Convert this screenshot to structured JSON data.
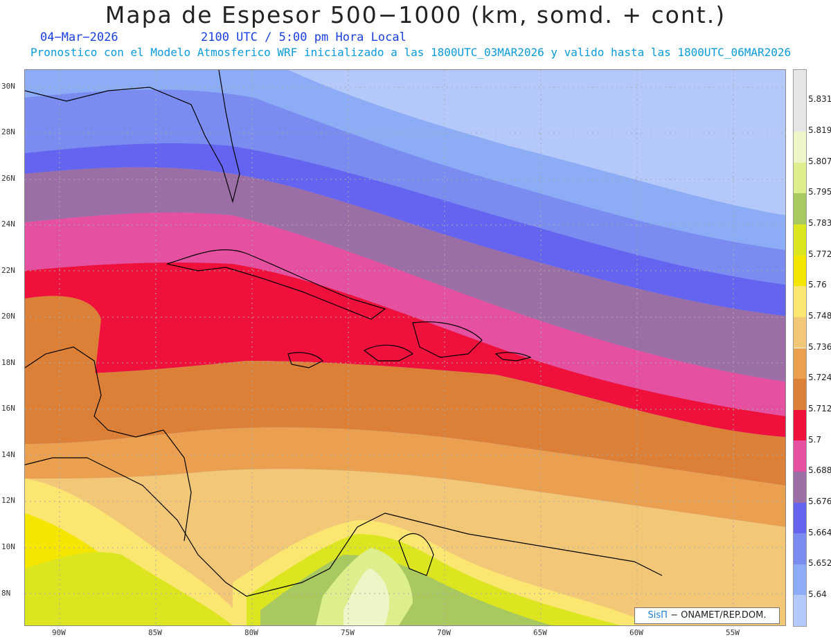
{
  "header": {
    "title": "Mapa de Espesor 500−1000 (km, somd. + cont.)",
    "date": "04−Mar−2026",
    "time": "2100 UTC / 5:00 pm Hora Local",
    "subtitle": "Pronostico con el Modelo Atmosferico WRF inicializado a las 1800UTC_03MAR2026 y valido hasta las  1800UTC_06MAR2026"
  },
  "map": {
    "lat_labels": [
      "30N",
      "28N",
      "26N",
      "24N",
      "22N",
      "20N",
      "18N",
      "16N",
      "14N",
      "12N",
      "10N",
      "8N"
    ],
    "lon_labels": [
      "90W",
      "85W",
      "80W",
      "75W",
      "70W",
      "65W",
      "60W",
      "55W"
    ]
  },
  "colorbar": {
    "labels": [
      "5.831",
      "5.819",
      "5.807",
      "5.795",
      "5.783",
      "5.772",
      "5.76",
      "5.748",
      "5.736",
      "5.724",
      "5.712",
      "5.7",
      "5.688",
      "5.676",
      "5.664",
      "5.652",
      "5.64"
    ],
    "colors": [
      "#e6e6e6",
      "#f0f5c8",
      "#dcef8c",
      "#a8c860",
      "#dce620",
      "#f5e600",
      "#fae670",
      "#f2c878",
      "#eba050",
      "#dc8038",
      "#f0103c",
      "#e650a0",
      "#9b6ea5",
      "#6464f0",
      "#7b8cf0",
      "#8cacf5",
      "#b4c8fa"
    ]
  },
  "credit": {
    "brand": "SisΠ",
    "text": "− ONAMET/REP.DOM."
  }
}
